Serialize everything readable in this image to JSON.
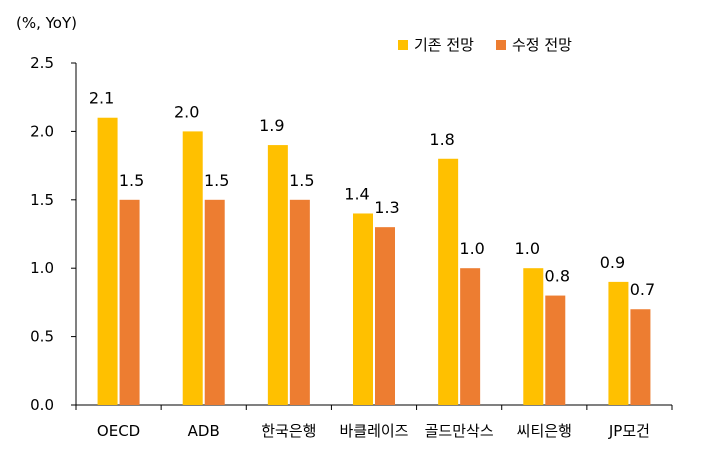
{
  "chart_data": {
    "type": "bar",
    "title": "",
    "unit_label": "(%, YoY)",
    "xlabel": "",
    "ylabel": "",
    "ylim": [
      0,
      2.5
    ],
    "yticks": [
      "0.0",
      "0.5",
      "1.0",
      "1.5",
      "2.0",
      "2.5"
    ],
    "categories": [
      "OECD",
      "ADB",
      "한국은행",
      "바클레이즈",
      "골드만삭스",
      "씨티은행",
      "JP모건"
    ],
    "series": [
      {
        "name": "기존 전망",
        "color": "#FFC000",
        "values": [
          2.1,
          2.0,
          1.9,
          1.4,
          1.8,
          1.0,
          0.9
        ],
        "labels": [
          "2.1",
          "2.0",
          "1.9",
          "1.4",
          "1.8",
          "1.0",
          "0.9"
        ]
      },
      {
        "name": "수정 전망",
        "color": "#ED7D31",
        "values": [
          1.5,
          1.5,
          1.5,
          1.3,
          1.0,
          0.8,
          0.7
        ],
        "labels": [
          "1.5",
          "1.5",
          "1.5",
          "1.3",
          "1.0",
          "0.8",
          "0.7"
        ]
      }
    ],
    "legend_position": "top-right",
    "grid": false
  }
}
